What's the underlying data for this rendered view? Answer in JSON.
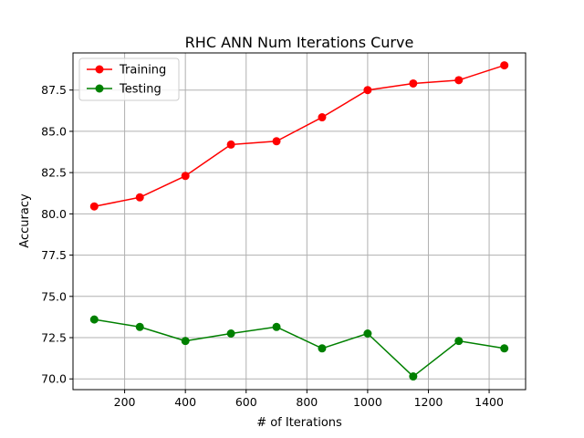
{
  "chart_data": {
    "type": "line",
    "title": "RHC ANN Num Iterations Curve",
    "xlabel": "# of Iterations",
    "ylabel": "Accuracy",
    "x": [
      100,
      250,
      400,
      550,
      700,
      850,
      1000,
      1150,
      1300,
      1450
    ],
    "xlim": [
      30,
      1520
    ],
    "ylim": [
      69.35,
      89.75
    ],
    "xticks": [
      200,
      400,
      600,
      800,
      1000,
      1200,
      1400
    ],
    "yticks": [
      70.0,
      72.5,
      75.0,
      77.5,
      80.0,
      82.5,
      85.0,
      87.5
    ],
    "grid": true,
    "legend_position": "top-left",
    "series": [
      {
        "name": "Training",
        "color": "#ff0000",
        "values": [
          80.45,
          81.0,
          82.3,
          84.2,
          84.4,
          85.85,
          87.5,
          87.9,
          88.1,
          89.0
        ]
      },
      {
        "name": "Testing",
        "color": "#008000",
        "values": [
          73.6,
          73.15,
          72.3,
          72.75,
          73.15,
          71.85,
          72.75,
          70.15,
          72.3,
          71.85
        ]
      }
    ]
  }
}
